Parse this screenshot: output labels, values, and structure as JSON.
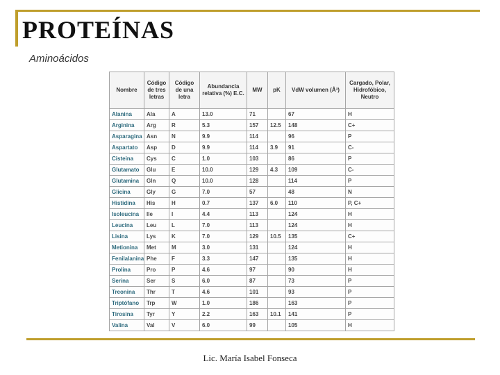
{
  "slide": {
    "title": "PROTEÍNAS",
    "subtitle": "Aminoácidos",
    "footer": "Lic. María Isabel Fonseca",
    "accent_color": "#bf9e2c",
    "name_link_color": "#2d6a7d"
  },
  "table": {
    "headers": [
      "Nombre",
      "Código de tres letras",
      "Código de una letra",
      "Abundancia relativa (%) E.C.",
      "MW",
      "pK",
      "VdW volumen (Å³)",
      "Cargado, Polar, Hidrofóbico, Neutro"
    ],
    "column_keys": [
      "name",
      "code3",
      "code1",
      "abundance",
      "mw",
      "pk",
      "vdw",
      "charge"
    ],
    "rows": [
      {
        "name": "Alanina",
        "code3": "Ala",
        "code1": "A",
        "abundance": "13.0",
        "mw": "71",
        "pk": "",
        "vdw": "67",
        "charge": "H"
      },
      {
        "name": "Arginina",
        "code3": "Arg",
        "code1": "R",
        "abundance": "5.3",
        "mw": "157",
        "pk": "12.5",
        "vdw": "148",
        "charge": "C+"
      },
      {
        "name": "Asparagina",
        "code3": "Asn",
        "code1": "N",
        "abundance": "9.9",
        "mw": "114",
        "pk": "",
        "vdw": "96",
        "charge": "P"
      },
      {
        "name": "Aspartato",
        "code3": "Asp",
        "code1": "D",
        "abundance": "9.9",
        "mw": "114",
        "pk": "3.9",
        "vdw": "91",
        "charge": "C-"
      },
      {
        "name": "Cisteina",
        "code3": "Cys",
        "code1": "C",
        "abundance": "1.0",
        "mw": "103",
        "pk": "",
        "vdw": "86",
        "charge": "P"
      },
      {
        "name": "Glutamato",
        "code3": "Glu",
        "code1": "E",
        "abundance": "10.0",
        "mw": "129",
        "pk": "4.3",
        "vdw": "109",
        "charge": "C-"
      },
      {
        "name": "Glutamina",
        "code3": "Gln",
        "code1": "Q",
        "abundance": "10.0",
        "mw": "128",
        "pk": "",
        "vdw": "114",
        "charge": "P"
      },
      {
        "name": "Glicina",
        "code3": "Gly",
        "code1": "G",
        "abundance": "7.0",
        "mw": "57",
        "pk": "",
        "vdw": "48",
        "charge": "N"
      },
      {
        "name": "Histidina",
        "code3": "His",
        "code1": "H",
        "abundance": "0.7",
        "mw": "137",
        "pk": "6.0",
        "vdw": "110",
        "charge": "P, C+"
      },
      {
        "name": "Isoleucina",
        "code3": "Ile",
        "code1": "I",
        "abundance": "4.4",
        "mw": "113",
        "pk": "",
        "vdw": "124",
        "charge": "H"
      },
      {
        "name": "Leucina",
        "code3": "Leu",
        "code1": "L",
        "abundance": "7.0",
        "mw": "113",
        "pk": "",
        "vdw": "124",
        "charge": "H"
      },
      {
        "name": "Lisina",
        "code3": "Lys",
        "code1": "K",
        "abundance": "7.0",
        "mw": "129",
        "pk": "10.5",
        "vdw": "135",
        "charge": "C+"
      },
      {
        "name": "Metionina",
        "code3": "Met",
        "code1": "M",
        "abundance": "3.0",
        "mw": "131",
        "pk": "",
        "vdw": "124",
        "charge": "H"
      },
      {
        "name": "Fenilalanina",
        "code3": "Phe",
        "code1": "F",
        "abundance": "3.3",
        "mw": "147",
        "pk": "",
        "vdw": "135",
        "charge": "H"
      },
      {
        "name": "Prolina",
        "code3": "Pro",
        "code1": "P",
        "abundance": "4.6",
        "mw": "97",
        "pk": "",
        "vdw": "90",
        "charge": "H"
      },
      {
        "name": "Serina",
        "code3": "Ser",
        "code1": "S",
        "abundance": "6.0",
        "mw": "87",
        "pk": "",
        "vdw": "73",
        "charge": "P"
      },
      {
        "name": "Treonina",
        "code3": "Thr",
        "code1": "T",
        "abundance": "4.6",
        "mw": "101",
        "pk": "",
        "vdw": "93",
        "charge": "P"
      },
      {
        "name": "Triptófano",
        "code3": "Trp",
        "code1": "W",
        "abundance": "1.0",
        "mw": "186",
        "pk": "",
        "vdw": "163",
        "charge": "P"
      },
      {
        "name": "Tirosina",
        "code3": "Tyr",
        "code1": "Y",
        "abundance": "2.2",
        "mw": "163",
        "pk": "10.1",
        "vdw": "141",
        "charge": "P"
      },
      {
        "name": "Valina",
        "code3": "Val",
        "code1": "V",
        "abundance": "6.0",
        "mw": "99",
        "pk": "",
        "vdw": "105",
        "charge": "H"
      }
    ]
  }
}
